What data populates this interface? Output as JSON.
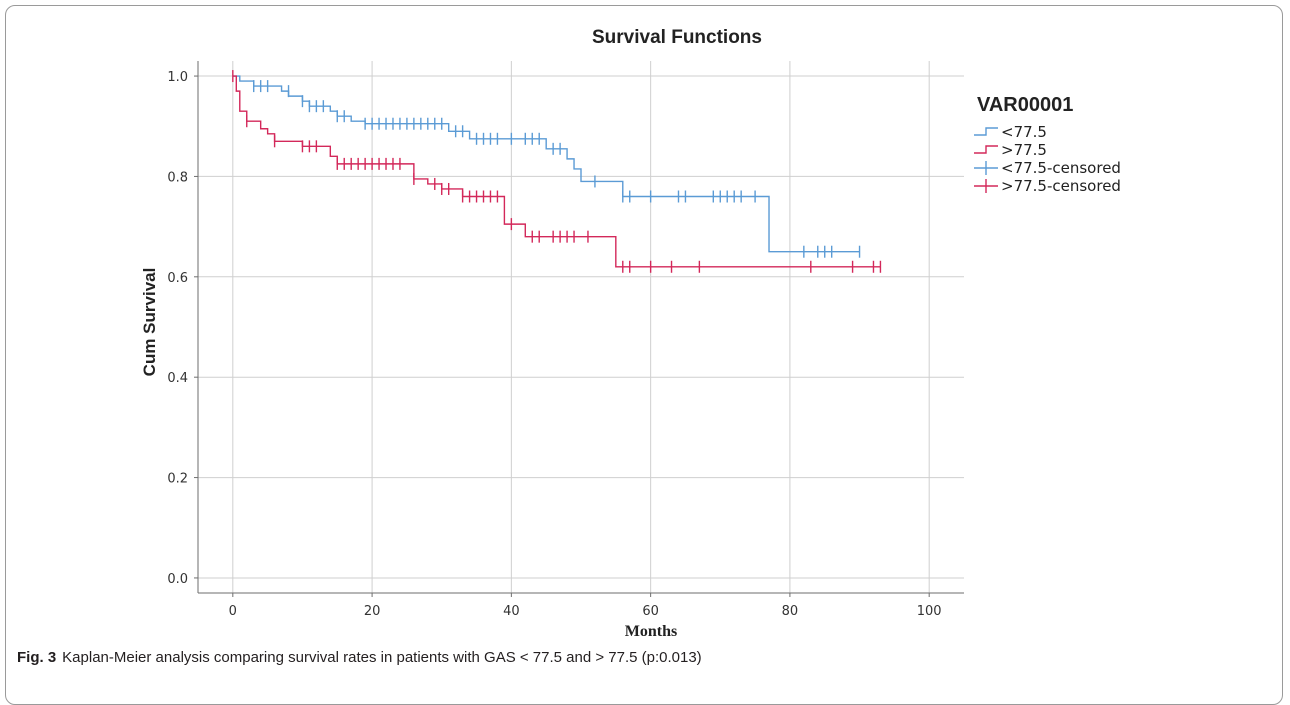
{
  "figure": {
    "label": "Fig. 3",
    "caption": "Kaplan-Meier analysis comparing survival rates in patients with GAS < 77.5 and > 77.5 (p:0.013)"
  },
  "colors": {
    "low": "#5b9bd5",
    "high": "#d3285a",
    "grid": "#cfcfcf",
    "axis": "#6e6e6e"
  },
  "chart_data": {
    "type": "line",
    "subtype": "kaplan-meier-step",
    "title": "Survival Functions",
    "xlabel": "Months",
    "ylabel": "Cum Survival",
    "xlim": [
      -5,
      105
    ],
    "ylim": [
      -0.03,
      1.03
    ],
    "xticks": [
      0,
      20,
      40,
      60,
      80,
      100
    ],
    "xtick_labels": [
      "0",
      "20",
      "40",
      "60",
      "80",
      "100"
    ],
    "yticks": [
      0.0,
      0.2,
      0.4,
      0.6,
      0.8,
      1.0
    ],
    "ytick_labels": [
      "0.0",
      "0.2",
      "0.4",
      "0.6",
      "0.8",
      "1.0"
    ],
    "grid": true,
    "legend": {
      "title": "VAR00001",
      "position": "right",
      "entries": [
        "<77.5",
        ">77.5",
        "<77.5-censored",
        ">77.5-censored"
      ]
    },
    "series": [
      {
        "name": "<77.5",
        "color": "#5b9bd5",
        "steps": [
          [
            0,
            1.0
          ],
          [
            1,
            0.99
          ],
          [
            3,
            0.98
          ],
          [
            7,
            0.97
          ],
          [
            8,
            0.96
          ],
          [
            10,
            0.95
          ],
          [
            11,
            0.94
          ],
          [
            14,
            0.93
          ],
          [
            15,
            0.92
          ],
          [
            17,
            0.91
          ],
          [
            19,
            0.905
          ],
          [
            31,
            0.89
          ],
          [
            34,
            0.875
          ],
          [
            45,
            0.855
          ],
          [
            48,
            0.835
          ],
          [
            49,
            0.815
          ],
          [
            50,
            0.79
          ],
          [
            56,
            0.76
          ],
          [
            77,
            0.65
          ],
          [
            90,
            0.65
          ]
        ],
        "censored": [
          [
            3,
            0.98
          ],
          [
            4,
            0.98
          ],
          [
            5,
            0.98
          ],
          [
            8,
            0.97
          ],
          [
            10,
            0.95
          ],
          [
            11,
            0.94
          ],
          [
            12,
            0.94
          ],
          [
            13,
            0.94
          ],
          [
            15,
            0.92
          ],
          [
            16,
            0.92
          ],
          [
            19,
            0.905
          ],
          [
            20,
            0.905
          ],
          [
            21,
            0.905
          ],
          [
            22,
            0.905
          ],
          [
            23,
            0.905
          ],
          [
            24,
            0.905
          ],
          [
            25,
            0.905
          ],
          [
            26,
            0.905
          ],
          [
            27,
            0.905
          ],
          [
            28,
            0.905
          ],
          [
            29,
            0.905
          ],
          [
            30,
            0.905
          ],
          [
            32,
            0.89
          ],
          [
            33,
            0.89
          ],
          [
            35,
            0.875
          ],
          [
            36,
            0.875
          ],
          [
            37,
            0.875
          ],
          [
            38,
            0.875
          ],
          [
            40,
            0.875
          ],
          [
            42,
            0.875
          ],
          [
            43,
            0.875
          ],
          [
            44,
            0.875
          ],
          [
            46,
            0.855
          ],
          [
            47,
            0.855
          ],
          [
            52,
            0.79
          ],
          [
            56,
            0.76
          ],
          [
            57,
            0.76
          ],
          [
            60,
            0.76
          ],
          [
            64,
            0.76
          ],
          [
            65,
            0.76
          ],
          [
            69,
            0.76
          ],
          [
            70,
            0.76
          ],
          [
            71,
            0.76
          ],
          [
            72,
            0.76
          ],
          [
            73,
            0.76
          ],
          [
            75,
            0.76
          ],
          [
            82,
            0.65
          ],
          [
            84,
            0.65
          ],
          [
            85,
            0.65
          ],
          [
            86,
            0.65
          ],
          [
            90,
            0.65
          ]
        ]
      },
      {
        "name": ">77.5",
        "color": "#d3285a",
        "steps": [
          [
            0,
            1.0
          ],
          [
            0.5,
            0.97
          ],
          [
            1,
            0.93
          ],
          [
            2,
            0.91
          ],
          [
            4,
            0.895
          ],
          [
            5,
            0.885
          ],
          [
            6,
            0.87
          ],
          [
            10,
            0.86
          ],
          [
            14,
            0.84
          ],
          [
            15,
            0.825
          ],
          [
            26,
            0.795
          ],
          [
            28,
            0.785
          ],
          [
            30,
            0.775
          ],
          [
            33,
            0.76
          ],
          [
            39,
            0.705
          ],
          [
            42,
            0.68
          ],
          [
            53,
            0.68
          ],
          [
            55,
            0.62
          ],
          [
            93,
            0.62
          ]
        ],
        "censored": [
          [
            0,
            1.0
          ],
          [
            2,
            0.91
          ],
          [
            6,
            0.87
          ],
          [
            10,
            0.86
          ],
          [
            11,
            0.86
          ],
          [
            12,
            0.86
          ],
          [
            15,
            0.825
          ],
          [
            16,
            0.825
          ],
          [
            17,
            0.825
          ],
          [
            18,
            0.825
          ],
          [
            19,
            0.825
          ],
          [
            20,
            0.825
          ],
          [
            21,
            0.825
          ],
          [
            22,
            0.825
          ],
          [
            23,
            0.825
          ],
          [
            24,
            0.825
          ],
          [
            26,
            0.795
          ],
          [
            29,
            0.785
          ],
          [
            30,
            0.775
          ],
          [
            31,
            0.775
          ],
          [
            33,
            0.76
          ],
          [
            34,
            0.76
          ],
          [
            35,
            0.76
          ],
          [
            36,
            0.76
          ],
          [
            37,
            0.76
          ],
          [
            38,
            0.76
          ],
          [
            40,
            0.705
          ],
          [
            43,
            0.68
          ],
          [
            44,
            0.68
          ],
          [
            46,
            0.68
          ],
          [
            47,
            0.68
          ],
          [
            48,
            0.68
          ],
          [
            49,
            0.68
          ],
          [
            51,
            0.68
          ],
          [
            56,
            0.62
          ],
          [
            57,
            0.62
          ],
          [
            60,
            0.62
          ],
          [
            63,
            0.62
          ],
          [
            67,
            0.62
          ],
          [
            83,
            0.62
          ],
          [
            89,
            0.62
          ],
          [
            92,
            0.62
          ],
          [
            93,
            0.62
          ]
        ]
      }
    ]
  }
}
